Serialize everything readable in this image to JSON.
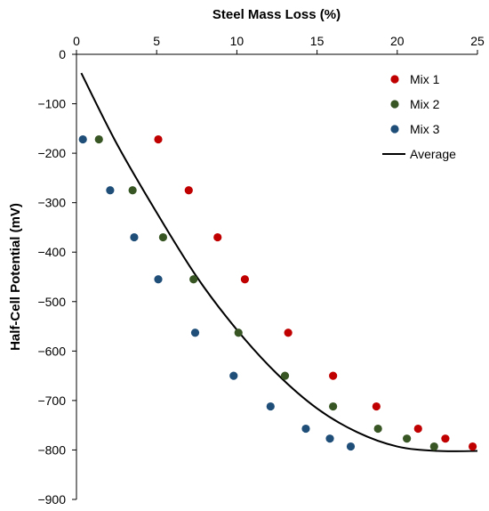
{
  "chart_data": {
    "type": "scatter",
    "xlabel": "Steel Mass Loss (%)",
    "ylabel": "Half-Cell Potential (mV)",
    "xlim": [
      0,
      25
    ],
    "ylim": [
      -900,
      0
    ],
    "x_axis_position": "top",
    "x_ticks": [
      0,
      5,
      10,
      15,
      20,
      25
    ],
    "y_ticks": [
      0,
      -100,
      -200,
      -300,
      -400,
      -500,
      -600,
      -700,
      -800,
      -900
    ],
    "x_tick_labels": [
      "0",
      "5",
      "10",
      "15",
      "20",
      "25"
    ],
    "y_tick_labels": [
      "0",
      "−100",
      "−200",
      "−300",
      "−400",
      "−500",
      "−600",
      "−700",
      "−800",
      "−900"
    ],
    "grid": false,
    "legend_position": "top-right",
    "series": [
      {
        "name": "Mix 1",
        "color": "#c00000",
        "marker": "circle",
        "points": [
          [
            5.1,
            -172
          ],
          [
            7.0,
            -275
          ],
          [
            8.8,
            -370
          ],
          [
            10.5,
            -455
          ],
          [
            13.2,
            -563
          ],
          [
            16.0,
            -650
          ],
          [
            18.7,
            -712
          ],
          [
            21.3,
            -757
          ],
          [
            23.0,
            -777
          ],
          [
            24.7,
            -793
          ]
        ]
      },
      {
        "name": "Mix 2",
        "color": "#375623",
        "marker": "circle",
        "points": [
          [
            1.4,
            -172
          ],
          [
            3.5,
            -275
          ],
          [
            5.4,
            -370
          ],
          [
            7.3,
            -455
          ],
          [
            10.1,
            -563
          ],
          [
            13.0,
            -650
          ],
          [
            16.0,
            -712
          ],
          [
            18.8,
            -757
          ],
          [
            20.6,
            -777
          ],
          [
            22.3,
            -793
          ]
        ]
      },
      {
        "name": "Mix 3",
        "color": "#1f4e79",
        "marker": "circle",
        "points": [
          [
            0.4,
            -172
          ],
          [
            2.1,
            -275
          ],
          [
            3.6,
            -370
          ],
          [
            5.1,
            -455
          ],
          [
            7.4,
            -563
          ],
          [
            9.8,
            -650
          ],
          [
            12.1,
            -712
          ],
          [
            14.3,
            -757
          ],
          [
            15.8,
            -777
          ],
          [
            17.1,
            -793
          ]
        ]
      },
      {
        "name": "Average",
        "color": "#000000",
        "style": "line",
        "curve": "quadratic",
        "points": [
          [
            0.3,
            -38
          ],
          [
            2.5,
            -180
          ],
          [
            5.0,
            -320
          ],
          [
            7.5,
            -450
          ],
          [
            10.0,
            -557
          ],
          [
            12.5,
            -646
          ],
          [
            15.0,
            -716
          ],
          [
            17.5,
            -764
          ],
          [
            20.0,
            -793
          ],
          [
            22.5,
            -802
          ],
          [
            25.0,
            -802
          ]
        ]
      }
    ]
  }
}
